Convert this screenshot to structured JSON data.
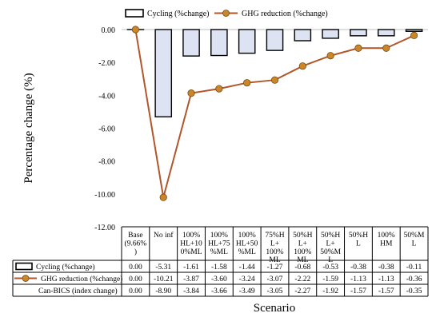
{
  "chart_data": {
    "type": "bar",
    "title": "",
    "ylabel": "Percentage change (%)",
    "xlabel": "Scenario",
    "ylim": [
      -12,
      0
    ],
    "yticks": [
      0,
      -2,
      -4,
      -6,
      -8,
      -10,
      -12
    ],
    "ytick_labels": [
      "0.00",
      "-2.00",
      "-4.00",
      "-6.00",
      "-8.00",
      "-10.00",
      "-12.00"
    ],
    "legend_position": "top",
    "grid": false,
    "categories": [
      [
        "Base",
        "(9.66%",
        ")"
      ],
      [
        "No inf"
      ],
      [
        "100%",
        "HL+10",
        "0%ML"
      ],
      [
        "100%",
        "HL+75",
        "%ML"
      ],
      [
        "100%",
        "HL+50",
        "%ML"
      ],
      [
        "75%H",
        "L+",
        "100%",
        "ML"
      ],
      [
        "50%H",
        "L+",
        "100%",
        "ML"
      ],
      [
        "50%H",
        "L+",
        "50%M",
        "L"
      ],
      [
        "50%H",
        "L"
      ],
      [
        "100%",
        "HM"
      ],
      [
        "50%M",
        "L"
      ]
    ],
    "series": [
      {
        "name": "Cycling (%change)",
        "kind": "bar",
        "color": "#dde3f3",
        "values": [
          0.0,
          -5.31,
          -1.61,
          -1.58,
          -1.44,
          -1.27,
          -0.68,
          -0.53,
          -0.38,
          -0.38,
          -0.11
        ],
        "labels": [
          "0.00",
          "-5.31",
          "-1.61",
          "-1.58",
          "-1.44",
          "-1.27",
          "-0.68",
          "-0.53",
          "-0.38",
          "-0.38",
          "-0.11"
        ]
      },
      {
        "name": "GHG reduction (%change)",
        "kind": "line",
        "color": "#b2552b",
        "marker_color": "#c9872a",
        "values": [
          0.0,
          -10.21,
          -3.87,
          -3.6,
          -3.24,
          -3.07,
          -2.22,
          -1.59,
          -1.13,
          -1.13,
          -0.36
        ],
        "labels": [
          "0.00",
          "-10.21",
          "-3.87",
          "-3.60",
          "-3.24",
          "-3.07",
          "-2.22",
          "-1.59",
          "-1.13",
          "-1.13",
          "-0.36"
        ]
      }
    ],
    "table_extra_rows": [
      {
        "name": "Can-BICS (index change)",
        "labels": [
          "0.00",
          "-8.90",
          "-3.84",
          "-3.66",
          "-3.49",
          "-3.05",
          "-2.27",
          "-1.92",
          "-1.57",
          "-1.57",
          "-0.35"
        ]
      }
    ]
  }
}
